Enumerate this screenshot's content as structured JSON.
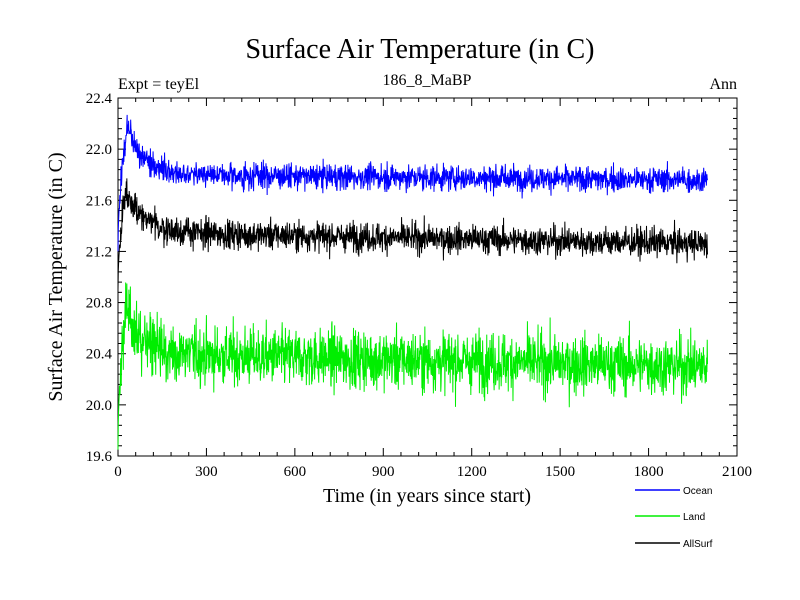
{
  "chart_data": {
    "type": "line",
    "title": "Surface Air Temperature (in C)",
    "subtitle_left": "Expt = teyEl",
    "subtitle_center": "186_8_MaBP",
    "subtitle_right": "Ann",
    "xlabel": "Time (in years since start)",
    "ylabel": "Surface Air Temperature (in C)",
    "xlim": [
      0,
      2100
    ],
    "ylim": [
      19.6,
      22.4
    ],
    "xticks": [
      "0",
      "300",
      "600",
      "900",
      "1200",
      "1500",
      "1800",
      "2100"
    ],
    "yticks": [
      "19.6",
      "20.0",
      "20.4",
      "20.8",
      "21.2",
      "21.6",
      "22.0",
      "22.4"
    ],
    "x_range": [
      0,
      2000
    ],
    "series": [
      {
        "name": "Ocean",
        "color": "#0000ff",
        "start": 21.2,
        "peak": 22.2,
        "peak_year": 35,
        "mean": 21.8,
        "end_mean": 21.76,
        "noise": 0.07
      },
      {
        "name": "Land",
        "color": "#00ee00",
        "start": 19.65,
        "peak": 20.8,
        "peak_year": 30,
        "mean": 20.4,
        "end_mean": 20.3,
        "noise": 0.16
      },
      {
        "name": "AllSurf",
        "color": "#000000",
        "start": 20.9,
        "peak": 21.7,
        "peak_year": 30,
        "mean": 21.35,
        "end_mean": 21.26,
        "noise": 0.08
      }
    ]
  }
}
